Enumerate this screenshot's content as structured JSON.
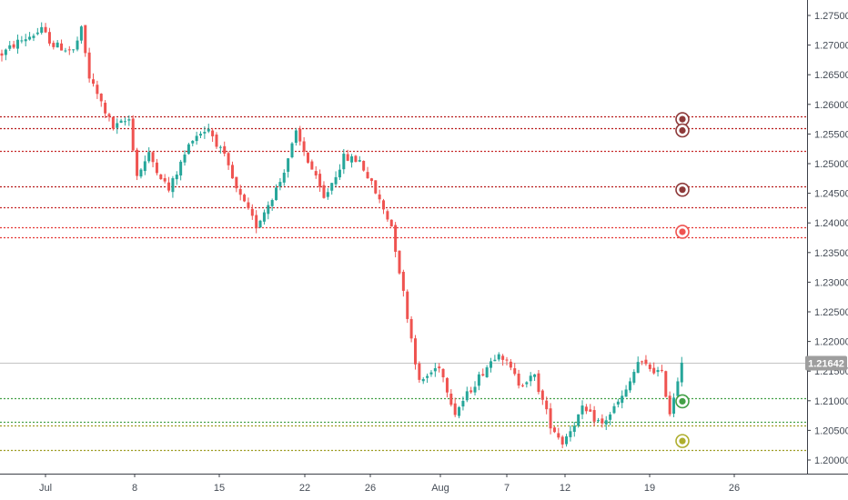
{
  "colors": {
    "up": "#26a69a",
    "down": "#ef5350",
    "axis_text": "#444b55",
    "axis_line": "#3c4048",
    "current_price_tag": "#9e9e9e",
    "current_price_line": "#c4c4c4"
  },
  "chart_data": {
    "type": "candlestick",
    "title": "",
    "xlabel": "",
    "ylabel": "",
    "ylim": [
      1.1975,
      1.2775
    ],
    "y_ticks": [
      "1.27500",
      "1.27000",
      "1.26500",
      "1.26000",
      "1.25500",
      "1.25000",
      "1.24500",
      "1.24000",
      "1.23500",
      "1.23000",
      "1.22500",
      "1.22000",
      "1.21500",
      "1.21000",
      "1.20500",
      "1.20000"
    ],
    "x_ticks": [
      "Jul",
      "8",
      "15",
      "22",
      "26",
      "Aug",
      "7",
      "12",
      "19",
      "26"
    ],
    "current_price": 1.21642,
    "current_price_label": "1.21642",
    "close_path": [
      [
        0,
        1.2685
      ],
      [
        4,
        1.2705
      ],
      [
        10,
        1.2725
      ],
      [
        13,
        1.27
      ],
      [
        18,
        1.269
      ],
      [
        20,
        1.2725
      ],
      [
        22,
        1.2645
      ],
      [
        28,
        1.256
      ],
      [
        32,
        1.2575
      ],
      [
        34,
        1.248
      ],
      [
        37,
        1.2515
      ],
      [
        42,
        1.2455
      ],
      [
        48,
        1.2545
      ],
      [
        52,
        1.256
      ],
      [
        56,
        1.251
      ],
      [
        59,
        1.2455
      ],
      [
        64,
        1.2395
      ],
      [
        70,
        1.247
      ],
      [
        74,
        1.255
      ],
      [
        78,
        1.249
      ],
      [
        81,
        1.244
      ],
      [
        86,
        1.251
      ],
      [
        90,
        1.2505
      ],
      [
        93,
        1.2465
      ],
      [
        98,
        1.2395
      ],
      [
        105,
        1.213
      ],
      [
        110,
        1.216
      ],
      [
        114,
        1.208
      ],
      [
        120,
        1.214
      ],
      [
        125,
        1.2185
      ],
      [
        130,
        1.213
      ],
      [
        134,
        1.214
      ],
      [
        138,
        1.206
      ],
      [
        141,
        1.203
      ],
      [
        146,
        1.2085
      ],
      [
        151,
        1.206
      ],
      [
        157,
        1.2115
      ],
      [
        160,
        1.2165
      ],
      [
        166,
        1.2145
      ],
      [
        168,
        1.208
      ],
      [
        171,
        1.2165
      ]
    ],
    "levels": [
      {
        "value": 1.258,
        "color": "#b71c1c",
        "style": "dotted"
      },
      {
        "value": 1.256,
        "color": "#b71c1c",
        "style": "dotted"
      },
      {
        "value": 1.2522,
        "color": "#c62828",
        "style": "dotted"
      },
      {
        "value": 1.2462,
        "color": "#b71c1c",
        "style": "dotted"
      },
      {
        "value": 1.2426,
        "color": "#c62828",
        "style": "dotted"
      },
      {
        "value": 1.2392,
        "color": "#e53935",
        "style": "dotted"
      },
      {
        "value": 1.2376,
        "color": "#e53935",
        "style": "dotted"
      },
      {
        "value": 1.2105,
        "color": "#43a047",
        "style": "dotted"
      },
      {
        "value": 1.2064,
        "color": "#43a047",
        "style": "dotted"
      },
      {
        "value": 1.2058,
        "color": "#9e9d24",
        "style": "dotted"
      },
      {
        "value": 1.2017,
        "color": "#9e9d24",
        "style": "dotted"
      }
    ],
    "markers": [
      {
        "value": 1.2575,
        "color": "#8d3a3a"
      },
      {
        "value": 1.2556,
        "color": "#8d3a3a"
      },
      {
        "value": 1.2456,
        "color": "#8d3a3a"
      },
      {
        "value": 1.2385,
        "color": "#ef5350"
      },
      {
        "value": 1.2099,
        "color": "#43a047"
      },
      {
        "value": 1.2032,
        "color": "#aeae2e"
      }
    ],
    "grid": false,
    "legend": "none"
  }
}
